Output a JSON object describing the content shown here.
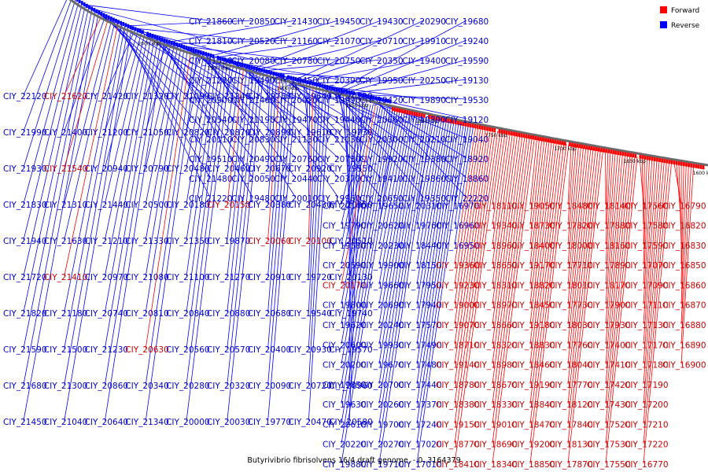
{
  "legend": {
    "forward_label": "Forward",
    "reverse_label": "Reverse",
    "forward_color": "#ff0000",
    "reverse_color": "#0000ff"
  },
  "caption": "Butyrivibrio fibrisolvens 16/4 draft genome. - 0..3164379",
  "kbp_ticks": [
    "2000 kbp",
    "1950 kbp",
    "1900 kbp",
    "1850 kbp",
    "1800 kbp",
    "1750 kbp",
    "1700 kbp",
    "1650 kbp",
    "1600 kbp"
  ],
  "colors": {
    "backbone": "#6b6b6b",
    "highlight_red": "#cc0000",
    "text_blue": "#0000cc",
    "text_red": "#cc0000"
  },
  "genes": [
    {
      "text": "CIY_21860",
      "s": "r"
    },
    {
      "text": "CIY_21810",
      "s": "r"
    },
    {
      "text": "CIY_21530",
      "s": "r"
    },
    {
      "text": "CIY_21280",
      "s": "r"
    },
    {
      "text": "CIY_20900",
      "s": "r"
    },
    {
      "text": "CIY_20540",
      "s": "r"
    },
    {
      "text": "CIY_20110",
      "s": "r"
    },
    {
      "text": "CIY_19510",
      "s": "r"
    },
    {
      "text": "CIY_21480",
      "s": "r"
    },
    {
      "text": "CIY_21220",
      "s": "r"
    },
    {
      "text": "CIY_20850",
      "s": "r"
    },
    {
      "text": "CIY_20520",
      "s": "r"
    },
    {
      "text": "CIY_20080",
      "s": "r"
    },
    {
      "text": "CIY_19490",
      "s": "r"
    },
    {
      "text": "CIY_21460",
      "s": "r"
    },
    {
      "text": "CIY_21190",
      "s": "r"
    },
    {
      "text": "CIY_20830",
      "s": "r"
    },
    {
      "text": "CIY_20490",
      "s": "r"
    },
    {
      "text": "CIY_20050",
      "s": "r"
    },
    {
      "text": "CIY_19480",
      "s": "r"
    },
    {
      "text": "CIY_21430",
      "s": "r"
    },
    {
      "text": "CIY_21160",
      "s": "r"
    },
    {
      "text": "CIY_20780",
      "s": "r"
    },
    {
      "text": "CIY_20450",
      "s": "r"
    },
    {
      "text": "CIY_20020",
      "s": "r"
    },
    {
      "text": "CIY_19470",
      "s": "r"
    },
    {
      "text": "CIY_21130",
      "s": "r"
    },
    {
      "text": "CIY_20760",
      "s": "r"
    },
    {
      "text": "CIY_20440",
      "s": "r"
    },
    {
      "text": "CIY_20010",
      "s": "r"
    },
    {
      "text": "CIY_19450",
      "s": "r"
    },
    {
      "text": "CIY_21070",
      "s": "r"
    },
    {
      "text": "CIY_20750",
      "s": "r"
    },
    {
      "text": "CIY_20390",
      "s": "r"
    },
    {
      "text": "CIY_19990",
      "s": "r"
    },
    {
      "text": "CIY_19440",
      "s": "r"
    },
    {
      "text": "CIY_21030",
      "s": "r"
    },
    {
      "text": "CIY_20730",
      "s": "r"
    },
    {
      "text": "CIY_20370",
      "s": "r"
    },
    {
      "text": "CIY_19960",
      "s": "r"
    },
    {
      "text": "CIY_19430",
      "s": "r"
    },
    {
      "text": "CIY_20710",
      "s": "r"
    },
    {
      "text": "CIY_20350",
      "s": "r"
    },
    {
      "text": "CIY_19950",
      "s": "r"
    },
    {
      "text": "CIY_19420",
      "s": "r"
    },
    {
      "text": "CIY_20660",
      "s": "r"
    },
    {
      "text": "CIY_20300",
      "s": "r"
    },
    {
      "text": "CIY_19920",
      "s": "r"
    },
    {
      "text": "CIY_19410",
      "s": "r"
    },
    {
      "text": "CIY_20650",
      "s": "r"
    },
    {
      "text": "CIY_20290",
      "s": "r"
    },
    {
      "text": "CIY_19910",
      "s": "r"
    },
    {
      "text": "CIY_19400",
      "s": "r"
    },
    {
      "text": "CIY_20250",
      "s": "r"
    },
    {
      "text": "CIY_19890",
      "s": "r"
    },
    {
      "text": "CIY_19390",
      "s": "r"
    },
    {
      "text": "CIY_20210",
      "s": "r"
    },
    {
      "text": "CIY_19380",
      "s": "r"
    },
    {
      "text": "CIY_19860",
      "s": "r"
    },
    {
      "text": "CIY_19350",
      "s": "r"
    },
    {
      "text": "CIY_19680",
      "s": "r"
    },
    {
      "text": "CIY_19240",
      "s": "r"
    },
    {
      "text": "CIY_19590",
      "s": "r"
    },
    {
      "text": "CIY_19130",
      "s": "r"
    },
    {
      "text": "CIY_19530",
      "s": "r"
    },
    {
      "text": "CIY_19120",
      "s": "r"
    },
    {
      "text": "CIY_19040",
      "s": "r"
    },
    {
      "text": "CIY_18920",
      "s": "r"
    },
    {
      "text": "CIY_18860",
      "s": "r"
    },
    {
      "text": "CIY_22220",
      "s": "r"
    },
    {
      "text": "CIY_22120",
      "s": "r"
    },
    {
      "text": "CIY_21990",
      "s": "r"
    },
    {
      "text": "CIY_21930",
      "s": "r"
    },
    {
      "text": "CIY_21830",
      "s": "r"
    },
    {
      "text": "CIY_21940",
      "s": "r"
    },
    {
      "text": "CIY_21720",
      "s": "r"
    },
    {
      "text": "CIY_21820",
      "s": "r"
    },
    {
      "text": "CIY_21590",
      "s": "r"
    },
    {
      "text": "CIY_21680",
      "s": "r"
    },
    {
      "text": "CIY_21450",
      "s": "r"
    },
    {
      "text": "CIY_21620",
      "s": "f"
    },
    {
      "text": "CIY_21400",
      "s": "r"
    },
    {
      "text": "CIY_21540",
      "s": "f"
    },
    {
      "text": "CIY_21310",
      "s": "r"
    },
    {
      "text": "CIY_21630",
      "s": "r"
    },
    {
      "text": "CIY_21410",
      "s": "f"
    },
    {
      "text": "CIY_21180",
      "s": "r"
    },
    {
      "text": "CIY_21500",
      "s": "r"
    },
    {
      "text": "CIY_21300",
      "s": "r"
    },
    {
      "text": "CIY_21040",
      "s": "r"
    },
    {
      "text": "CIY_21420",
      "s": "r"
    },
    {
      "text": "CIY_21200",
      "s": "r"
    },
    {
      "text": "CIY_20940",
      "s": "r"
    },
    {
      "text": "CIY_21440",
      "s": "r"
    },
    {
      "text": "CIY_21210",
      "s": "r"
    },
    {
      "text": "CIY_20970",
      "s": "r"
    },
    {
      "text": "CIY_20740",
      "s": "r"
    },
    {
      "text": "CIY_21230",
      "s": "r"
    },
    {
      "text": "CIY_20860",
      "s": "r"
    },
    {
      "text": "CIY_20640",
      "s": "r"
    },
    {
      "text": "CIY_21320",
      "s": "r"
    },
    {
      "text": "CIY_21050",
      "s": "r"
    },
    {
      "text": "CIY_20790",
      "s": "r"
    },
    {
      "text": "CIY_20500",
      "s": "r"
    },
    {
      "text": "CIY_21330",
      "s": "r"
    },
    {
      "text": "CIY_21080",
      "s": "r"
    },
    {
      "text": "CIY_20810",
      "s": "r"
    },
    {
      "text": "CIY_20630",
      "s": "f"
    },
    {
      "text": "CIY_20340",
      "s": "r"
    },
    {
      "text": "CIY_21340",
      "s": "r"
    },
    {
      "text": "CIY_21090",
      "s": "r"
    },
    {
      "text": "CIY_20820",
      "s": "r"
    },
    {
      "text": "CIY_20480",
      "s": "r"
    },
    {
      "text": "CIY_20180",
      "s": "r"
    },
    {
      "text": "CIY_21350",
      "s": "r"
    },
    {
      "text": "CIY_21100",
      "s": "r"
    },
    {
      "text": "CIY_20840",
      "s": "r"
    },
    {
      "text": "CIY_20560",
      "s": "r"
    },
    {
      "text": "CIY_20280",
      "s": "r"
    },
    {
      "text": "CIY_20000",
      "s": "r"
    },
    {
      "text": "CIY_21240",
      "s": "r"
    },
    {
      "text": "CIY_20870",
      "s": "r"
    },
    {
      "text": "CIY_20460",
      "s": "r"
    },
    {
      "text": "CIY_20150",
      "s": "f"
    },
    {
      "text": "CIY_19870",
      "s": "r"
    },
    {
      "text": "CIY_21270",
      "s": "r"
    },
    {
      "text": "CIY_20880",
      "s": "r"
    },
    {
      "text": "CIY_20570",
      "s": "r"
    },
    {
      "text": "CIY_20320",
      "s": "r"
    },
    {
      "text": "CIY_20030",
      "s": "r"
    },
    {
      "text": "CIY_19750",
      "s": "r"
    },
    {
      "text": "CIY_20890",
      "s": "r"
    },
    {
      "text": "CIY_20670",
      "s": "r"
    },
    {
      "text": "CIY_20380",
      "s": "r"
    },
    {
      "text": "CIY_20060",
      "s": "f"
    },
    {
      "text": "CIY_20910",
      "s": "r"
    },
    {
      "text": "CIY_20680",
      "s": "r"
    },
    {
      "text": "CIY_20400",
      "s": "r"
    },
    {
      "text": "CIY_20090",
      "s": "r"
    },
    {
      "text": "CIY_19770",
      "s": "r"
    },
    {
      "text": "CIY_19640",
      "s": "r"
    },
    {
      "text": "CIY_19610",
      "s": "r"
    },
    {
      "text": "CIY_20920",
      "s": "r"
    },
    {
      "text": "CIY_20430",
      "s": "r"
    },
    {
      "text": "CIY_20100",
      "s": "f"
    },
    {
      "text": "CIY_19720",
      "s": "r"
    },
    {
      "text": "CIY_19540",
      "s": "r"
    },
    {
      "text": "CIY_20930",
      "s": "r"
    },
    {
      "text": "CIY_20720",
      "s": "r"
    },
    {
      "text": "CIY_20470",
      "s": "r"
    },
    {
      "text": "CIY_20120",
      "s": "r"
    },
    {
      "text": "CIY_19730",
      "s": "r"
    },
    {
      "text": "CIY_19550",
      "s": "r"
    },
    {
      "text": "CIY_20950",
      "s": "r"
    },
    {
      "text": "CIY_20510",
      "s": "r"
    },
    {
      "text": "CIY_20130",
      "s": "r"
    },
    {
      "text": "CIY_19740",
      "s": "r"
    },
    {
      "text": "CIY_19570",
      "s": "r"
    },
    {
      "text": "CIY_20960",
      "s": "r"
    },
    {
      "text": "CIY_20580",
      "s": "r"
    },
    {
      "text": "CIY_20140",
      "s": "r"
    },
    {
      "text": "CIY_19790",
      "s": "r"
    },
    {
      "text": "CIY_19580",
      "s": "r"
    },
    {
      "text": "CIY_20590",
      "s": "r"
    },
    {
      "text": "CIY_20170",
      "s": "f"
    },
    {
      "text": "CIY_19800",
      "s": "r"
    },
    {
      "text": "CIY_19620",
      "s": "r"
    },
    {
      "text": "CIY_20600",
      "s": "r"
    },
    {
      "text": "CIY_20200",
      "s": "r"
    },
    {
      "text": "CIY_19850",
      "s": "r"
    },
    {
      "text": "CIY_19630",
      "s": "r"
    },
    {
      "text": "CIY_20610",
      "s": "r"
    },
    {
      "text": "CIY_20220",
      "s": "r"
    },
    {
      "text": "CIY_19880",
      "s": "r"
    },
    {
      "text": "CIY_19650",
      "s": "r"
    },
    {
      "text": "CIY_20620",
      "s": "r"
    },
    {
      "text": "CIY_20230",
      "s": "r"
    },
    {
      "text": "CIY_19900",
      "s": "r"
    },
    {
      "text": "CIY_19660",
      "s": "r"
    },
    {
      "text": "CIY_20690",
      "s": "r"
    },
    {
      "text": "CIY_20240",
      "s": "r"
    },
    {
      "text": "CIY_19930",
      "s": "r"
    },
    {
      "text": "CIY_19670",
      "s": "r"
    },
    {
      "text": "CIY_20700",
      "s": "r"
    },
    {
      "text": "CIY_20260",
      "s": "r"
    },
    {
      "text": "CIY_19700",
      "s": "r"
    },
    {
      "text": "CIY_20270",
      "s": "r"
    },
    {
      "text": "CIY_19710",
      "s": "r"
    },
    {
      "text": "CIY_20310",
      "s": "r"
    },
    {
      "text": "CIY_19760",
      "s": "r"
    },
    {
      "text": "CIY_18440",
      "s": "r"
    },
    {
      "text": "CIY_18150",
      "s": "r"
    },
    {
      "text": "CIY_17950",
      "s": "r"
    },
    {
      "text": "CIY_17940",
      "s": "r"
    },
    {
      "text": "CIY_17570",
      "s": "r"
    },
    {
      "text": "CIY_17490",
      "s": "r"
    },
    {
      "text": "CIY_17480",
      "s": "r"
    },
    {
      "text": "CIY_17440",
      "s": "r"
    },
    {
      "text": "CIY_17370",
      "s": "r"
    },
    {
      "text": "CIY_17240",
      "s": "r"
    },
    {
      "text": "CIY_17020",
      "s": "r"
    },
    {
      "text": "CIY_17010",
      "s": "r"
    },
    {
      "text": "CIY_16970",
      "s": "r"
    },
    {
      "text": "CIY_16960",
      "s": "r"
    },
    {
      "text": "CIY_16950",
      "s": "r"
    },
    {
      "text": "CIY_19360",
      "s": "f"
    },
    {
      "text": "CIY_19230",
      "s": "f"
    },
    {
      "text": "CIY_19000",
      "s": "f"
    },
    {
      "text": "CIY_19070",
      "s": "f"
    },
    {
      "text": "CIY_18710",
      "s": "f"
    },
    {
      "text": "CIY_19140",
      "s": "f"
    },
    {
      "text": "CIY_18780",
      "s": "f"
    },
    {
      "text": "CIY_18380",
      "s": "f"
    },
    {
      "text": "CIY_19150",
      "s": "f"
    },
    {
      "text": "CIY_18770",
      "s": "f"
    },
    {
      "text": "CIY_18410",
      "s": "f"
    },
    {
      "text": "CIY_18110",
      "s": "f"
    },
    {
      "text": "CIY_19340",
      "s": "f"
    },
    {
      "text": "CIY_18960",
      "s": "f"
    },
    {
      "text": "CIY_18650",
      "s": "f"
    },
    {
      "text": "CIY_18310",
      "s": "f"
    },
    {
      "text": "CIY_18970",
      "s": "f"
    },
    {
      "text": "CIY_18660",
      "s": "f"
    },
    {
      "text": "CIY_18320",
      "s": "f"
    },
    {
      "text": "CIY_18980",
      "s": "f"
    },
    {
      "text": "CIY_18670",
      "s": "f"
    },
    {
      "text": "CIY_18330",
      "s": "f"
    },
    {
      "text": "CIY_19010",
      "s": "f"
    },
    {
      "text": "CIY_18690",
      "s": "f"
    },
    {
      "text": "CIY_18340",
      "s": "f"
    },
    {
      "text": "CIY_19050",
      "s": "f"
    },
    {
      "text": "CIY_18730",
      "s": "f"
    },
    {
      "text": "CIY_18400",
      "s": "f"
    },
    {
      "text": "CIY_19170",
      "s": "f"
    },
    {
      "text": "CIY_18820",
      "s": "f"
    },
    {
      "text": "CIY_18450",
      "s": "f"
    },
    {
      "text": "CIY_19180",
      "s": "f"
    },
    {
      "text": "CIY_18830",
      "s": "f"
    },
    {
      "text": "CIY_18460",
      "s": "f"
    },
    {
      "text": "CIY_19190",
      "s": "f"
    },
    {
      "text": "CIY_18840",
      "s": "f"
    },
    {
      "text": "CIY_18470",
      "s": "f"
    },
    {
      "text": "CIY_19200",
      "s": "f"
    },
    {
      "text": "CIY_18850",
      "s": "f"
    },
    {
      "text": "CIY_18480",
      "s": "f"
    },
    {
      "text": "CIY_17820",
      "s": "f"
    },
    {
      "text": "CIY_18000",
      "s": "f"
    },
    {
      "text": "CIY_17710",
      "s": "f"
    },
    {
      "text": "CIY_18010",
      "s": "f"
    },
    {
      "text": "CIY_17730",
      "s": "f"
    },
    {
      "text": "CIY_18030",
      "s": "f"
    },
    {
      "text": "CIY_17760",
      "s": "f"
    },
    {
      "text": "CIY_18040",
      "s": "f"
    },
    {
      "text": "CIY_17770",
      "s": "f"
    },
    {
      "text": "CIY_18120",
      "s": "f"
    },
    {
      "text": "CIY_17840",
      "s": "f"
    },
    {
      "text": "CIY_18130",
      "s": "f"
    },
    {
      "text": "CIY_17870",
      "s": "f"
    },
    {
      "text": "CIY_18140",
      "s": "f"
    },
    {
      "text": "CIY_17880",
      "s": "f"
    },
    {
      "text": "CIY_18160",
      "s": "f"
    },
    {
      "text": "CIY_17890",
      "s": "f"
    },
    {
      "text": "CIY_18170",
      "s": "f"
    },
    {
      "text": "CIY_17900",
      "s": "f"
    },
    {
      "text": "CIY_17930",
      "s": "f"
    },
    {
      "text": "CIY_17400",
      "s": "f"
    },
    {
      "text": "CIY_17410",
      "s": "f"
    },
    {
      "text": "CIY_17420",
      "s": "f"
    },
    {
      "text": "CIY_17430",
      "s": "f"
    },
    {
      "text": "CIY_17520",
      "s": "f"
    },
    {
      "text": "CIY_17530",
      "s": "f"
    },
    {
      "text": "CIY_17550",
      "s": "f"
    },
    {
      "text": "CIY_17560",
      "s": "f"
    },
    {
      "text": "CIY_17580",
      "s": "f"
    },
    {
      "text": "CIY_17590",
      "s": "f"
    },
    {
      "text": "CIY_17070",
      "s": "f"
    },
    {
      "text": "CIY_17090",
      "s": "f"
    },
    {
      "text": "CIY_17110",
      "s": "f"
    },
    {
      "text": "CIY_17130",
      "s": "f"
    },
    {
      "text": "CIY_17170",
      "s": "f"
    },
    {
      "text": "CIY_17180",
      "s": "f"
    },
    {
      "text": "CIY_17190",
      "s": "f"
    },
    {
      "text": "CIY_17200",
      "s": "f"
    },
    {
      "text": "CIY_17210",
      "s": "f"
    },
    {
      "text": "CIY_17220",
      "s": "f"
    },
    {
      "text": "CIY_16770",
      "s": "f"
    },
    {
      "text": "CIY_16790",
      "s": "f"
    },
    {
      "text": "CIY_16820",
      "s": "f"
    },
    {
      "text": "CIY_16830",
      "s": "f"
    },
    {
      "text": "CIY_16850",
      "s": "f"
    },
    {
      "text": "CIY_16860",
      "s": "f"
    },
    {
      "text": "CIY_16870",
      "s": "f"
    },
    {
      "text": "CIY_16880",
      "s": "f"
    },
    {
      "text": "CIY_16890",
      "s": "f"
    },
    {
      "text": "CIY_16900",
      "s": "f"
    }
  ]
}
